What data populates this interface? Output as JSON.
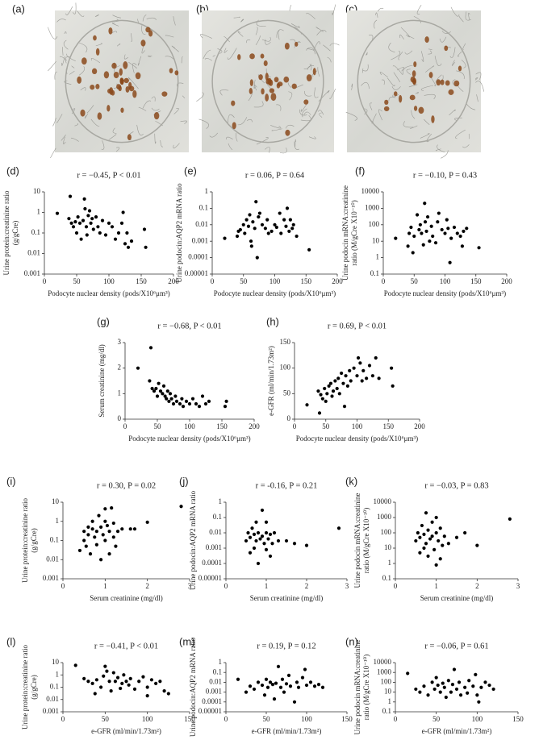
{
  "images": [
    {
      "label": "(a)"
    },
    {
      "label": "(b)"
    },
    {
      "label": "(c)"
    }
  ],
  "chart_data": [
    {
      "type": "scatter",
      "panel": "(d)",
      "title": "r = −0.45, P < 0.01",
      "x_label": "Podocyte nuclear density (pods/X10⁶μm³)",
      "y_label": [
        "Urine protein:creatinine ratio",
        "(g/gCre)"
      ],
      "log_y": true,
      "color": "#000000",
      "x": [
        20,
        38,
        40,
        42,
        45,
        48,
        50,
        52,
        55,
        57,
        60,
        62,
        63,
        65,
        66,
        68,
        70,
        72,
        74,
        76,
        80,
        83,
        86,
        90,
        95,
        100,
        105,
        110,
        115,
        120,
        122,
        125,
        128,
        130,
        135,
        155,
        157
      ],
      "values": [
        0.9,
        0.5,
        6,
        0.3,
        0.2,
        0.35,
        0.1,
        0.6,
        0.3,
        0.05,
        0.4,
        4.5,
        1.5,
        0.2,
        0.08,
        0.7,
        1.2,
        0.3,
        0.5,
        0.15,
        0.6,
        0.2,
        0.1,
        0.4,
        0.08,
        0.3,
        0.2,
        0.05,
        0.1,
        0.3,
        1.0,
        0.03,
        0.1,
        0.02,
        0.04,
        0.15,
        0.02
      ],
      "xlim": [
        0,
        200
      ],
      "xticks": [
        0,
        50,
        100,
        150,
        200
      ],
      "ylim": [
        0.001,
        10
      ],
      "yticks": [
        0.001,
        0.01,
        0.1,
        1,
        10
      ]
    },
    {
      "type": "scatter",
      "panel": "(e)",
      "title": "r = 0.06, P = 0.64",
      "x_label": "Podocyte nuclear density (pods/X10⁶μm³)",
      "y_label": [
        "Urine podocin:AQP2 mRNA ratio"
      ],
      "log_y": true,
      "color": "#000000",
      "x": [
        20,
        40,
        42,
        45,
        50,
        52,
        55,
        58,
        60,
        62,
        63,
        65,
        68,
        70,
        72,
        74,
        76,
        80,
        85,
        88,
        90,
        95,
        100,
        103,
        108,
        110,
        115,
        118,
        120,
        123,
        125,
        128,
        130,
        135,
        155
      ],
      "values": [
        0.0015,
        0.002,
        0.004,
        0.005,
        0.01,
        0.003,
        0.02,
        0.008,
        0.04,
        0.001,
        0.0005,
        0.015,
        0.006,
        0.25,
        0.0001,
        0.03,
        0.05,
        0.01,
        0.006,
        0.02,
        0.003,
        0.004,
        0.01,
        0.007,
        0.05,
        0.003,
        0.02,
        0.008,
        0.1,
        0.004,
        0.02,
        0.006,
        0.01,
        0.002,
        0.0003
      ],
      "xlim": [
        0,
        200
      ],
      "xticks": [
        0,
        50,
        100,
        150,
        200
      ],
      "ylim": [
        1e-05,
        1
      ],
      "yticks": [
        1e-05,
        0.0001,
        0.001,
        0.01,
        0.1,
        1
      ]
    },
    {
      "type": "scatter",
      "panel": "(f)",
      "title": "r = −0.10, P = 0.43",
      "x_label": "Podocyte nuclear density (pods/X10⁶μm³)",
      "y_label": [
        "Urine podocin mRNA:creatinine",
        "ratio (M/gCre X10⁻¹⁰)"
      ],
      "log_y": true,
      "color": "#000000",
      "x": [
        20,
        40,
        42,
        45,
        48,
        50,
        55,
        58,
        60,
        62,
        65,
        67,
        68,
        70,
        72,
        75,
        78,
        80,
        85,
        88,
        90,
        95,
        100,
        103,
        105,
        108,
        110,
        115,
        120,
        125,
        128,
        130,
        135,
        155
      ],
      "values": [
        15,
        5,
        30,
        70,
        2,
        20,
        400,
        50,
        100,
        30,
        6,
        2000,
        150,
        40,
        300,
        10,
        80,
        20,
        8,
        150,
        500,
        50,
        30,
        200,
        60,
        0.5,
        15,
        70,
        30,
        20,
        5,
        40,
        60,
        4
      ],
      "xlim": [
        0,
        200
      ],
      "xticks": [
        0,
        50,
        100,
        150,
        200
      ],
      "ylim": [
        0.1,
        10000
      ],
      "yticks": [
        0.1,
        1,
        10,
        100,
        1000,
        10000
      ]
    },
    {
      "type": "scatter",
      "panel": "(g)",
      "title": "r = −0.68, P < 0.01",
      "x_label": "Podocyte nuclear density (pods/X10⁶μm³)",
      "y_label": [
        "Serum creatinine (mg/dl)"
      ],
      "log_y": false,
      "color": "#000000",
      "x": [
        20,
        38,
        40,
        42,
        45,
        48,
        50,
        52,
        55,
        58,
        60,
        62,
        64,
        66,
        68,
        70,
        72,
        75,
        78,
        80,
        85,
        88,
        90,
        95,
        100,
        105,
        110,
        115,
        120,
        125,
        130,
        155,
        157
      ],
      "values": [
        2.0,
        1.5,
        2.8,
        1.2,
        1.1,
        1.2,
        0.9,
        1.4,
        1.1,
        1.0,
        1.3,
        0.9,
        0.8,
        1.1,
        0.7,
        1.0,
        0.8,
        0.6,
        0.9,
        0.7,
        0.6,
        0.8,
        0.5,
        0.7,
        0.6,
        0.8,
        0.6,
        0.5,
        0.9,
        0.6,
        0.7,
        0.5,
        0.7
      ],
      "xlim": [
        0,
        200
      ],
      "xticks": [
        0,
        50,
        100,
        150,
        200
      ],
      "ylim": [
        0,
        3
      ],
      "yticks": [
        0,
        1,
        2,
        3
      ]
    },
    {
      "type": "scatter",
      "panel": "(h)",
      "title": "r = 0.69, P < 0.01",
      "x_label": "Podocyte nuclear density (pods/X10⁶μm³)",
      "y_label": [
        "e-GFR (ml/min/1.73m²)"
      ],
      "log_y": false,
      "color": "#000000",
      "x": [
        20,
        38,
        40,
        42,
        45,
        48,
        50,
        52,
        55,
        58,
        60,
        62,
        65,
        68,
        70,
        72,
        75,
        78,
        80,
        82,
        85,
        88,
        90,
        95,
        100,
        102,
        105,
        108,
        110,
        115,
        120,
        125,
        130,
        135,
        155,
        157
      ],
      "values": [
        28,
        55,
        12,
        48,
        40,
        60,
        35,
        50,
        65,
        70,
        45,
        55,
        75,
        60,
        80,
        50,
        90,
        70,
        25,
        85,
        65,
        95,
        75,
        100,
        85,
        120,
        110,
        75,
        95,
        80,
        105,
        85,
        120,
        80,
        100,
        65
      ],
      "xlim": [
        0,
        200
      ],
      "xticks": [
        0,
        50,
        100,
        150,
        200
      ],
      "ylim": [
        0,
        150
      ],
      "yticks": [
        0,
        50,
        100,
        150
      ]
    },
    {
      "type": "scatter",
      "panel": "(i)",
      "title": "r = 0.30, P = 0.02",
      "x_label": "Serum creatinine (mg/dl)",
      "y_label": [
        "Urine protein:creatinine ratio",
        "(g/gCre)"
      ],
      "log_y": true,
      "color": "#000000",
      "x": [
        0.4,
        0.5,
        0.5,
        0.55,
        0.6,
        0.6,
        0.65,
        0.7,
        0.7,
        0.75,
        0.8,
        0.8,
        0.85,
        0.9,
        0.9,
        0.95,
        1.0,
        1.0,
        1.0,
        1.05,
        1.1,
        1.1,
        1.15,
        1.2,
        1.2,
        1.25,
        1.3,
        1.4,
        1.6,
        1.7,
        2.0,
        2.8
      ],
      "values": [
        0.03,
        0.1,
        0.3,
        0.05,
        0.2,
        0.5,
        0.02,
        0.4,
        1.0,
        0.15,
        0.3,
        0.06,
        2.0,
        0.5,
        0.01,
        0.2,
        1.0,
        0.1,
        4.5,
        0.6,
        0.3,
        0.02,
        5.0,
        0.8,
        0.15,
        0.05,
        0.3,
        0.4,
        0.4,
        0.4,
        0.9,
        6.0
      ],
      "xlim": [
        0,
        3
      ],
      "xticks": [
        0,
        1,
        2,
        3
      ],
      "ylim": [
        0.001,
        10
      ],
      "yticks": [
        0.001,
        0.01,
        0.1,
        1,
        10
      ]
    },
    {
      "type": "scatter",
      "panel": "(j)",
      "title": "r = -0.16, P = 0.21",
      "x_label": "Serum creatinine (mg/dl)",
      "y_label": [
        "Urine podocin:AQP2 mRNA ratio"
      ],
      "log_y": true,
      "color": "#000000",
      "x": [
        0.5,
        0.55,
        0.6,
        0.6,
        0.65,
        0.7,
        0.7,
        0.75,
        0.75,
        0.8,
        0.8,
        0.85,
        0.9,
        0.9,
        0.95,
        1.0,
        1.0,
        1.0,
        1.05,
        1.1,
        1.1,
        1.15,
        1.2,
        1.3,
        1.5,
        1.7,
        2.0,
        2.8
      ],
      "values": [
        0.003,
        0.01,
        0.0005,
        0.005,
        0.02,
        0.001,
        0.008,
        0.05,
        0.003,
        0.01,
        0.0001,
        0.004,
        0.3,
        0.006,
        0.002,
        0.01,
        0.0008,
        0.05,
        0.004,
        0.008,
        0.0003,
        0.002,
        0.01,
        0.003,
        0.003,
        0.002,
        0.0015,
        0.02
      ],
      "xlim": [
        0,
        3
      ],
      "xticks": [
        0,
        1,
        2,
        3
      ],
      "ylim": [
        1e-05,
        1
      ],
      "yticks": [
        1e-05,
        0.0001,
        0.001,
        0.01,
        0.1,
        1
      ]
    },
    {
      "type": "scatter",
      "panel": "(k)",
      "title": "r = −0.03, P = 0.83",
      "x_label": "Serum creatinine (mg/dl)",
      "y_label": [
        "Urine podocin mRNA:creatinine",
        "ratio (M/gCre X10⁻¹⁰)"
      ],
      "log_y": true,
      "color": "#000000",
      "x": [
        0.5,
        0.55,
        0.6,
        0.6,
        0.65,
        0.7,
        0.7,
        0.75,
        0.75,
        0.8,
        0.8,
        0.85,
        0.9,
        0.9,
        0.95,
        1.0,
        1.0,
        1.0,
        1.05,
        1.1,
        1.1,
        1.15,
        1.2,
        1.3,
        1.5,
        1.7,
        2.0,
        2.8
      ],
      "values": [
        30,
        100,
        5,
        50,
        300,
        10,
        80,
        2000,
        20,
        150,
        3,
        40,
        500,
        60,
        8,
        100,
        0.8,
        1000,
        30,
        200,
        2,
        15,
        60,
        20,
        50,
        100,
        15,
        800
      ],
      "xlim": [
        0,
        3
      ],
      "xticks": [
        0,
        1,
        2,
        3
      ],
      "ylim": [
        0.1,
        10000
      ],
      "yticks": [
        0.1,
        1,
        10,
        100,
        1000,
        10000
      ]
    },
    {
      "type": "scatter",
      "panel": "(l)",
      "title": "r = −0.41, P < 0.01",
      "x_label": "e-GFR (ml/min/1.73m²)",
      "y_label": [
        "Urine protein:creatinine ratio",
        "(g/gCre)"
      ],
      "log_y": true,
      "color": "#000000",
      "x": [
        15,
        25,
        30,
        35,
        38,
        40,
        45,
        48,
        50,
        52,
        55,
        57,
        60,
        62,
        65,
        68,
        70,
        72,
        75,
        78,
        80,
        85,
        90,
        95,
        100,
        100,
        105,
        110,
        115,
        120,
        125
      ],
      "values": [
        6,
        0.5,
        0.3,
        0.2,
        0.03,
        0.4,
        0.1,
        0.8,
        5,
        2,
        0.3,
        0.05,
        1.5,
        0.3,
        0.6,
        0.08,
        0.2,
        1.0,
        0.3,
        0.15,
        0.5,
        0.07,
        0.3,
        0.7,
        0.02,
        0.1,
        0.4,
        0.2,
        0.3,
        0.05,
        0.03
      ],
      "xlim": [
        0,
        150
      ],
      "xticks": [
        0,
        50,
        100,
        150
      ],
      "ylim": [
        0.001,
        10
      ],
      "yticks": [
        0.001,
        0.01,
        0.1,
        1,
        10
      ]
    },
    {
      "type": "scatter",
      "panel": "(m)",
      "title": "r = 0.19, P = 0.12",
      "x_label": "e-GFR (ml/min/1.73m²)",
      "y_label": [
        "Urine podocin:AQP2 mRNA ratio"
      ],
      "log_y": true,
      "color": "#000000",
      "x": [
        15,
        25,
        30,
        35,
        40,
        45,
        48,
        50,
        52,
        55,
        58,
        60,
        62,
        65,
        68,
        70,
        72,
        75,
        78,
        80,
        85,
        88,
        90,
        95,
        98,
        100,
        105,
        110,
        115,
        120
      ],
      "values": [
        0.02,
        0.001,
        0.004,
        0.002,
        0.01,
        0.005,
        0.0005,
        0.02,
        0.003,
        0.01,
        0.006,
        0.0002,
        0.008,
        0.4,
        0.003,
        0.02,
        0.001,
        0.007,
        0.05,
        0.004,
        0.0001,
        0.01,
        0.003,
        0.03,
        0.2,
        0.005,
        0.01,
        0.004,
        0.006,
        0.003
      ],
      "xlim": [
        0,
        150
      ],
      "xticks": [
        0,
        50,
        100,
        150
      ],
      "ylim": [
        1e-05,
        1
      ],
      "yticks": [
        1e-05,
        0.0001,
        0.001,
        0.01,
        0.1,
        1
      ]
    },
    {
      "type": "scatter",
      "panel": "(n)",
      "title": "r = −0.06, P = 0.61",
      "x_label": "e-GFR (ml/min/1.73m²)",
      "y_label": [
        "Urine podocin mRNA:creatinine",
        "ratio (M/gCre X10⁻¹⁰)"
      ],
      "log_y": true,
      "color": "#000000",
      "x": [
        15,
        25,
        30,
        35,
        40,
        45,
        48,
        50,
        52,
        55,
        58,
        60,
        62,
        65,
        68,
        70,
        72,
        75,
        78,
        80,
        85,
        88,
        90,
        95,
        98,
        100,
        102,
        105,
        110,
        115,
        120
      ],
      "values": [
        800,
        20,
        10,
        40,
        5,
        100,
        20,
        300,
        50,
        10,
        80,
        30,
        3,
        150,
        10,
        60,
        2000,
        20,
        100,
        5,
        30,
        8,
        150,
        40,
        600,
        5,
        1,
        30,
        100,
        50,
        20
      ],
      "xlim": [
        0,
        150
      ],
      "xticks": [
        0,
        50,
        100,
        150
      ],
      "ylim": [
        0.1,
        10000
      ],
      "yticks": [
        0.1,
        1,
        10,
        100,
        1000,
        10000
      ]
    }
  ]
}
